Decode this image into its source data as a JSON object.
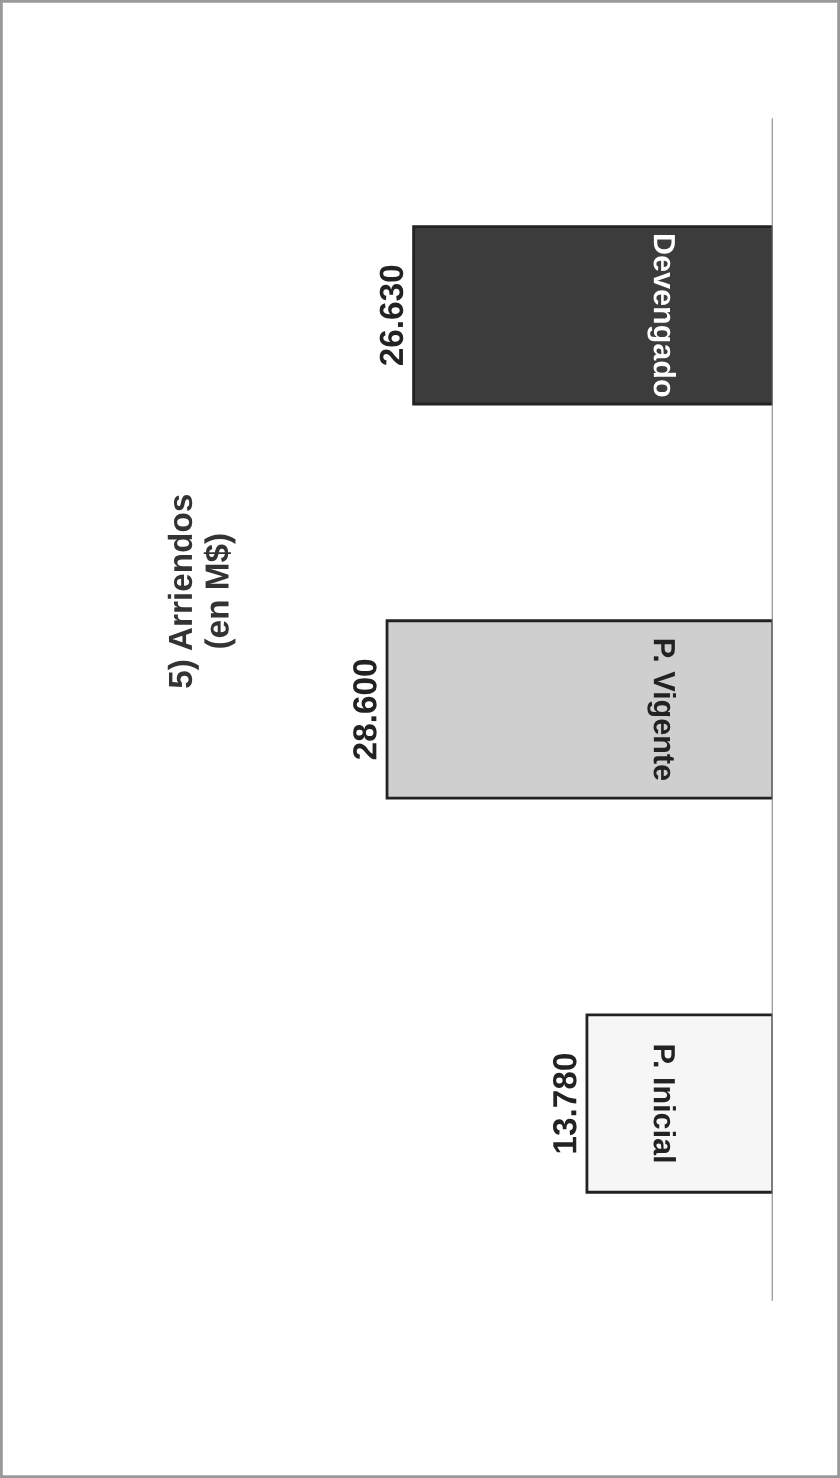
{
  "chart_data": {
    "type": "bar",
    "orientation": "horizontal",
    "title": "5) Arriendos\n(en M$)",
    "categories": [
      "Devengado",
      "P. Vigente",
      "P. Inicial"
    ],
    "values": [
      26630,
      28600,
      13780
    ],
    "colors": [
      "#3c3c3c",
      "#cfcfcf",
      "#f6f6f6"
    ],
    "value_labels": [
      "26.630",
      "28.600",
      "13.780"
    ],
    "legend": false
  }
}
